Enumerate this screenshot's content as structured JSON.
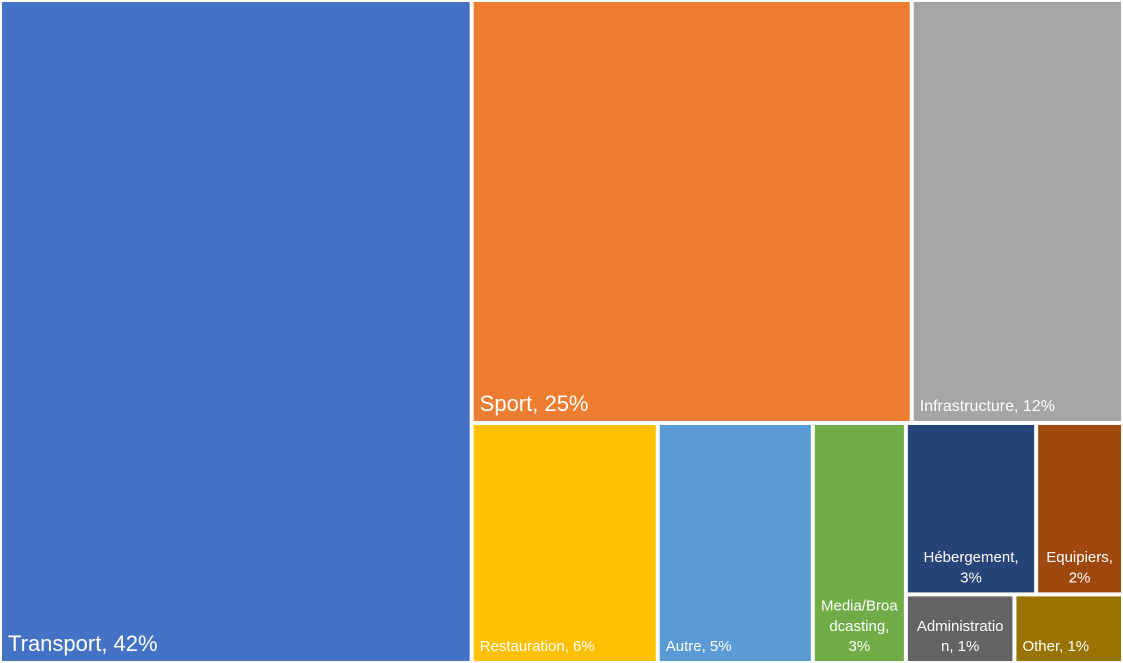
{
  "chart_data": {
    "type": "treemap",
    "values": [
      42,
      25,
      12,
      6,
      5,
      3,
      3,
      2,
      1,
      1
    ],
    "value_labels": [
      "Transport, 42%",
      "Sport, 25%",
      "Infrastructure, 12%",
      "Restauration, 6%",
      "Autre, 5%",
      "Media/Broadcasting, 3%",
      "Hébergement, 3%",
      "Equipiers, 2%",
      "Administration, 1%",
      "Other, 1%"
    ],
    "colors": [
      "#4472c4",
      "#ed7d31",
      "#a5a5a5",
      "#ffc000",
      "#5b9bd5",
      "#70ad47",
      "#264478",
      "#9e480e",
      "#636363",
      "#997300"
    ]
  }
}
